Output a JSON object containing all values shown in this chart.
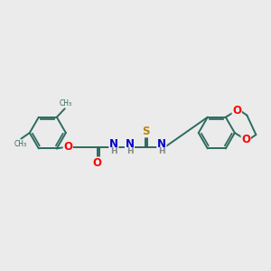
{
  "bg_color": "#ebebeb",
  "bond_color": "#2d6b5e",
  "bond_width": 1.4,
  "atom_colors": {
    "O": "#ff0000",
    "N": "#0000cd",
    "S": "#b8860b",
    "C": "#2d6b5e",
    "H": "#888888"
  },
  "figsize": [
    3.0,
    3.0
  ],
  "dpi": 100,
  "xlim": [
    0,
    10
  ],
  "ylim": [
    0,
    10
  ]
}
